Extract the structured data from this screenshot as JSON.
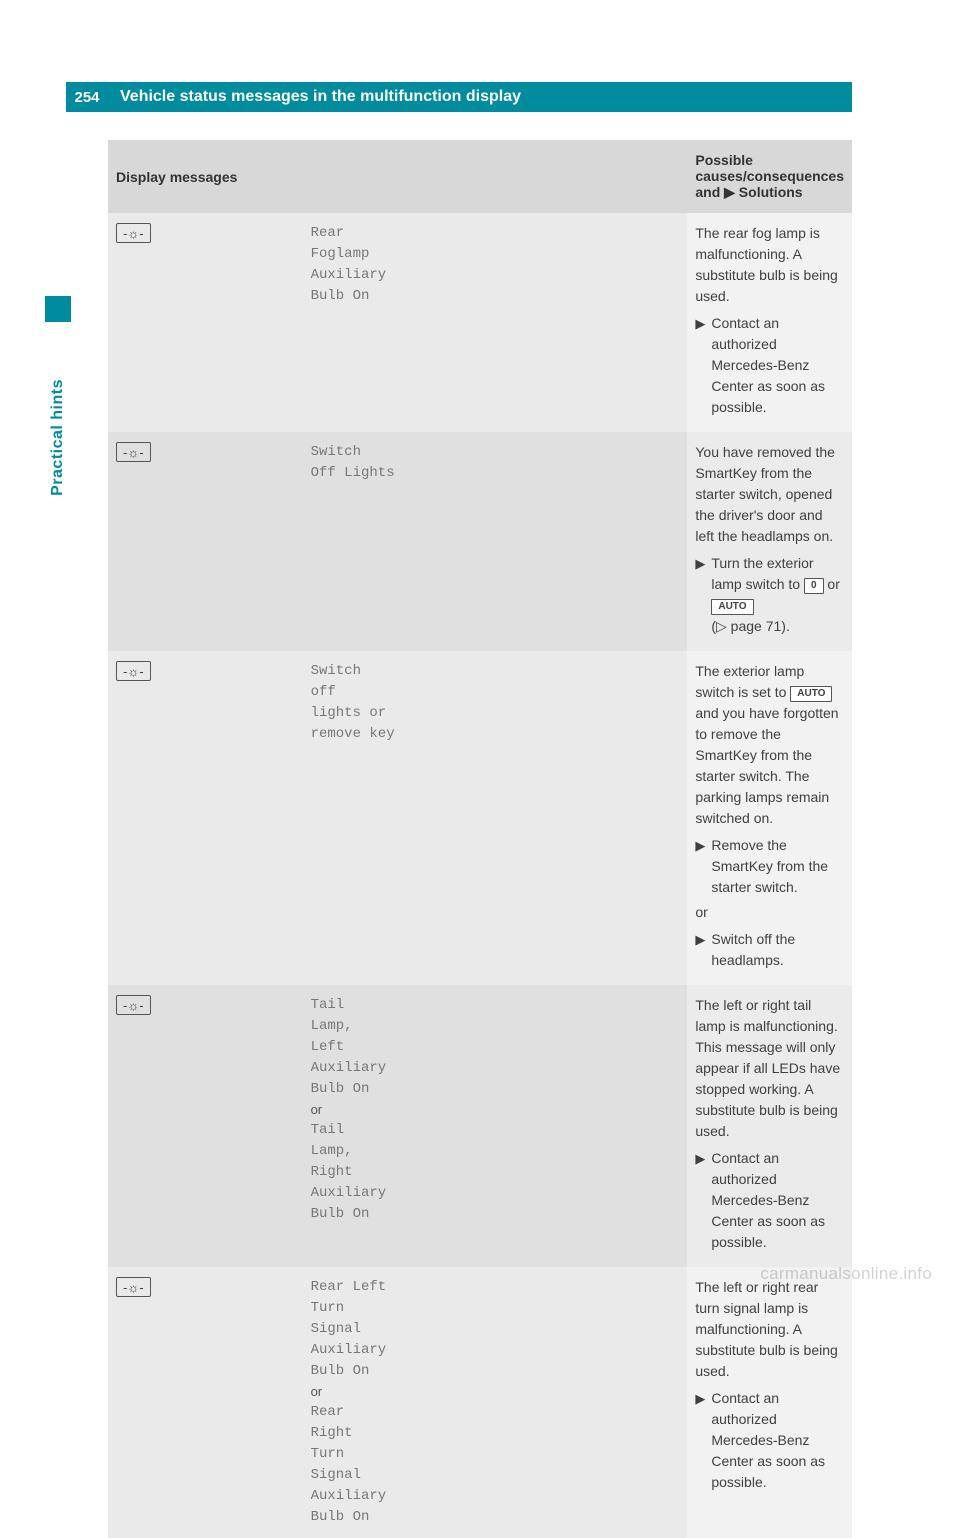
{
  "page_number": "254",
  "header_title": "Vehicle status messages in the multifunction display",
  "side_tab": "Practical hints",
  "table": {
    "header": {
      "col1": "Display messages",
      "col3_prefix": "Possible causes/consequences and ",
      "col3_suffix": " Solutions"
    },
    "rows": [
      {
        "msg": "Rear\nFoglamp\nAuxiliary\nBulb On",
        "desc": "The rear fog lamp is malfunctioning. A substitute bulb is being used.",
        "steps": [
          "Contact an authorized Mercedes-Benz Center as soon as possible."
        ]
      },
      {
        "msg": "Switch\nOff Lights",
        "desc": "You have removed the SmartKey from the starter switch, opened the driver's door and left the headlamps on.",
        "step_prefix": "Turn the exterior lamp switch to ",
        "box1": "0",
        "mid": " or ",
        "box2": "AUTO",
        "pageref": "(▷ page 71)."
      },
      {
        "msg": "Switch\noff\nlights or\nremove key",
        "desc_prefix": "The exterior lamp switch is set to ",
        "desc_box": "AUTO",
        "desc_suffix": " and you have forgotten to remove the SmartKey from the starter switch. The parking lamps remain switched on.",
        "steps": [
          "Remove the SmartKey from the starter switch."
        ],
        "or": "or",
        "steps2": [
          "Switch off the headlamps."
        ]
      },
      {
        "msg1": "Tail\nLamp,\nLeft\nAuxiliary\nBulb On",
        "or": "or",
        "msg2": "Tail\nLamp,\nRight\nAuxiliary\nBulb On",
        "desc": "The left or right tail lamp is malfunctioning. This message will only appear if all LEDs have stopped working. A substitute bulb is being used.",
        "steps": [
          "Contact an authorized Mercedes-Benz Center as soon as possible."
        ]
      },
      {
        "msg1": "Rear Left\nTurn\nSignal\nAuxiliary\nBulb On",
        "or": "or",
        "msg2": "Rear\nRight\nTurn\nSignal\nAuxiliary\nBulb On",
        "desc": "The left or right rear turn signal lamp is malfunctioning. A substitute bulb is being used.",
        "steps": [
          "Contact an authorized Mercedes-Benz Center as soon as possible."
        ]
      }
    ]
  },
  "icons": {
    "bulb_glyph": "-☼-"
  },
  "watermark": "carmanualsonline.info"
}
